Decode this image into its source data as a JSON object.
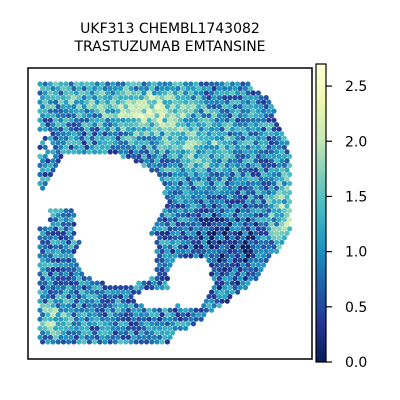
{
  "chart_data": {
    "type": "scatter",
    "subtype": "spatial-hexbin",
    "title_lines": [
      "UKF313 CHEMBL1743082",
      "TRASTUZUMAB EMTANSINE"
    ],
    "xlabel": "",
    "ylabel": "",
    "colorbar": {
      "colormap": "YlGnBu",
      "range": [
        0.0,
        2.7
      ],
      "ticks": [
        0.0,
        0.5,
        1.0,
        1.5,
        2.0,
        2.5
      ],
      "tick_labels": [
        "0.0",
        "0.5",
        "1.0",
        "1.5",
        "2.0",
        "2.5"
      ]
    },
    "grid": false,
    "legend": "colorbar-right"
  }
}
